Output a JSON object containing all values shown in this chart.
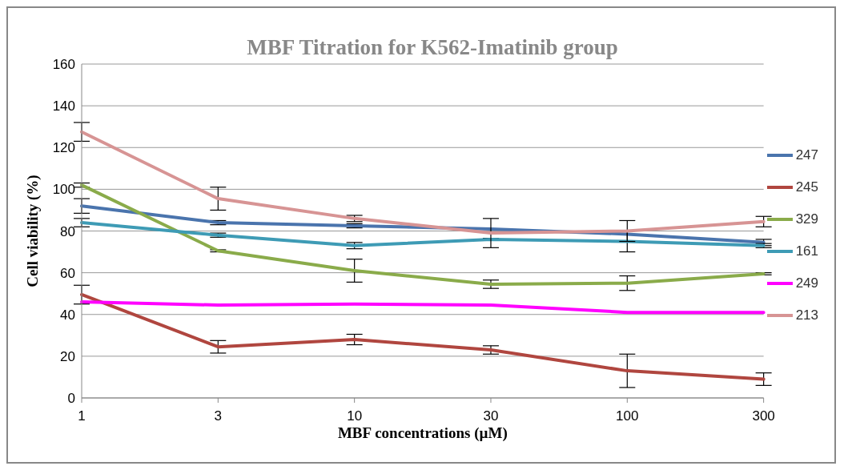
{
  "chart_data": {
    "type": "line",
    "title": "MBF Titration  for K562-Imatinib group",
    "xlabel": "MBF concentrations  (µM)",
    "ylabel": "Cell viability (%)",
    "categories": [
      "1",
      "3",
      "10",
      "30",
      "100",
      "300"
    ],
    "series": [
      {
        "name": "247",
        "color": "#4a74ad",
        "values": [
          92,
          84,
          82.5,
          81,
          78.5,
          74.5
        ],
        "errors": [
          3.5,
          1,
          1,
          null,
          null,
          1.5
        ]
      },
      {
        "name": "245",
        "color": "#b0463f",
        "values": [
          49.5,
          24.5,
          28,
          23,
          13,
          9
        ],
        "errors": [
          4.5,
          3,
          2.5,
          2,
          8,
          3
        ]
      },
      {
        "name": "329",
        "color": "#8aab4a",
        "values": [
          102,
          70.5,
          61,
          54.5,
          55,
          59.5
        ],
        "errors": [
          1,
          0.5,
          5.5,
          2,
          3.5,
          0.5
        ]
      },
      {
        "name": "161",
        "color": "#3e9bb5",
        "values": [
          84,
          78,
          73,
          76,
          75,
          73
        ],
        "errors": [
          2,
          1,
          1.5,
          0.5,
          5,
          1
        ]
      },
      {
        "name": "249",
        "color": "#ff00ff",
        "values": [
          46,
          44.5,
          45,
          44.5,
          41,
          41
        ]
      },
      {
        "name": "213",
        "color": "#d79494",
        "values": [
          127.5,
          95.5,
          86,
          79,
          80,
          84.5
        ],
        "errors": [
          4.5,
          5.5,
          1.5,
          7,
          5,
          2.5
        ]
      }
    ],
    "ylim": [
      0,
      160
    ],
    "yticks": [
      0,
      20,
      40,
      60,
      80,
      100,
      120,
      140,
      160
    ],
    "grid": "y",
    "legend": "right",
    "marker": "none",
    "line_style": "solid"
  }
}
